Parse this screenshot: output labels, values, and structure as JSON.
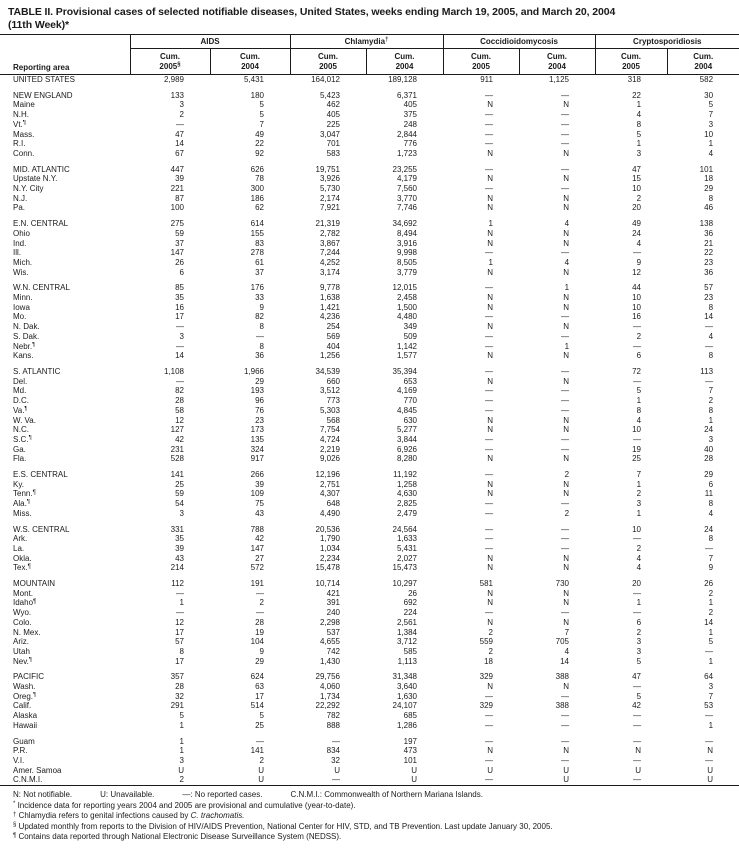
{
  "title": {
    "line1": "TABLE II. Provisional cases of selected notifiable diseases, United States, weeks ending March 19, 2005, and March 20, 2004",
    "line2": "(11th Week)*"
  },
  "header": {
    "reporting_area_label": "Reporting area",
    "groups": [
      {
        "label": "AIDS",
        "mark": "",
        "cols": [
          {
            "l1": "Cum.",
            "l2": "2005",
            "mark": "§"
          },
          {
            "l1": "Cum.",
            "l2": "2004",
            "mark": ""
          }
        ]
      },
      {
        "label": "Chlamydia",
        "mark": "†",
        "cols": [
          {
            "l1": "Cum.",
            "l2": "2005",
            "mark": ""
          },
          {
            "l1": "Cum.",
            "l2": "2004",
            "mark": ""
          }
        ]
      },
      {
        "label": "Coccidioidomycosis",
        "mark": "",
        "cols": [
          {
            "l1": "Cum.",
            "l2": "2005",
            "mark": ""
          },
          {
            "l1": "Cum.",
            "l2": "2004",
            "mark": ""
          }
        ]
      },
      {
        "label": "Cryptosporidiosis",
        "mark": "",
        "cols": [
          {
            "l1": "Cum.",
            "l2": "2005",
            "mark": ""
          },
          {
            "l1": "Cum.",
            "l2": "2004",
            "mark": ""
          }
        ]
      }
    ]
  },
  "sections": [
    {
      "rows": [
        {
          "area": "UNITED STATES",
          "mark": "",
          "values": [
            "2,989",
            "5,431",
            "164,012",
            "189,128",
            "911",
            "1,125",
            "318",
            "582"
          ]
        }
      ]
    },
    {
      "rows": [
        {
          "area": "NEW ENGLAND",
          "mark": "",
          "values": [
            "133",
            "180",
            "5,423",
            "6,371",
            "—",
            "—",
            "22",
            "30"
          ]
        },
        {
          "area": "Maine",
          "mark": "",
          "values": [
            "3",
            "5",
            "462",
            "405",
            "N",
            "N",
            "1",
            "5"
          ]
        },
        {
          "area": "N.H.",
          "mark": "",
          "values": [
            "2",
            "5",
            "405",
            "375",
            "—",
            "—",
            "4",
            "7"
          ]
        },
        {
          "area": "Vt.",
          "mark": "¶",
          "values": [
            "—",
            "7",
            "225",
            "248",
            "—",
            "—",
            "8",
            "3"
          ]
        },
        {
          "area": "Mass.",
          "mark": "",
          "values": [
            "47",
            "49",
            "3,047",
            "2,844",
            "—",
            "—",
            "5",
            "10"
          ]
        },
        {
          "area": "R.I.",
          "mark": "",
          "values": [
            "14",
            "22",
            "701",
            "776",
            "—",
            "—",
            "1",
            "1"
          ]
        },
        {
          "area": "Conn.",
          "mark": "",
          "values": [
            "67",
            "92",
            "583",
            "1,723",
            "N",
            "N",
            "3",
            "4"
          ]
        }
      ]
    },
    {
      "rows": [
        {
          "area": "MID. ATLANTIC",
          "mark": "",
          "values": [
            "447",
            "626",
            "19,751",
            "23,255",
            "—",
            "—",
            "47",
            "101"
          ]
        },
        {
          "area": "Upstate N.Y.",
          "mark": "",
          "values": [
            "39",
            "78",
            "3,926",
            "4,179",
            "N",
            "N",
            "15",
            "18"
          ]
        },
        {
          "area": "N.Y. City",
          "mark": "",
          "values": [
            "221",
            "300",
            "5,730",
            "7,560",
            "—",
            "—",
            "10",
            "29"
          ]
        },
        {
          "area": "N.J.",
          "mark": "",
          "values": [
            "87",
            "186",
            "2,174",
            "3,770",
            "N",
            "N",
            "2",
            "8"
          ]
        },
        {
          "area": "Pa.",
          "mark": "",
          "values": [
            "100",
            "62",
            "7,921",
            "7,746",
            "N",
            "N",
            "20",
            "46"
          ]
        }
      ]
    },
    {
      "rows": [
        {
          "area": "E.N. CENTRAL",
          "mark": "",
          "values": [
            "275",
            "614",
            "21,319",
            "34,692",
            "1",
            "4",
            "49",
            "138"
          ]
        },
        {
          "area": "Ohio",
          "mark": "",
          "values": [
            "59",
            "155",
            "2,782",
            "8,494",
            "N",
            "N",
            "24",
            "36"
          ]
        },
        {
          "area": "Ind.",
          "mark": "",
          "values": [
            "37",
            "83",
            "3,867",
            "3,916",
            "N",
            "N",
            "4",
            "21"
          ]
        },
        {
          "area": "Ill.",
          "mark": "",
          "values": [
            "147",
            "278",
            "7,244",
            "9,998",
            "—",
            "—",
            "—",
            "22"
          ]
        },
        {
          "area": "Mich.",
          "mark": "",
          "values": [
            "26",
            "61",
            "4,252",
            "8,505",
            "1",
            "4",
            "9",
            "23"
          ]
        },
        {
          "area": "Wis.",
          "mark": "",
          "values": [
            "6",
            "37",
            "3,174",
            "3,779",
            "N",
            "N",
            "12",
            "36"
          ]
        }
      ]
    },
    {
      "rows": [
        {
          "area": "W.N. CENTRAL",
          "mark": "",
          "values": [
            "85",
            "176",
            "9,778",
            "12,015",
            "—",
            "1",
            "44",
            "57"
          ]
        },
        {
          "area": "Minn.",
          "mark": "",
          "values": [
            "35",
            "33",
            "1,638",
            "2,458",
            "N",
            "N",
            "10",
            "23"
          ]
        },
        {
          "area": "Iowa",
          "mark": "",
          "values": [
            "16",
            "9",
            "1,421",
            "1,500",
            "N",
            "N",
            "10",
            "8"
          ]
        },
        {
          "area": "Mo.",
          "mark": "",
          "values": [
            "17",
            "82",
            "4,236",
            "4,480",
            "—",
            "—",
            "16",
            "14"
          ]
        },
        {
          "area": "N. Dak.",
          "mark": "",
          "values": [
            "—",
            "8",
            "254",
            "349",
            "N",
            "N",
            "—",
            "—"
          ]
        },
        {
          "area": "S. Dak.",
          "mark": "",
          "values": [
            "3",
            "—",
            "569",
            "509",
            "—",
            "—",
            "2",
            "4"
          ]
        },
        {
          "area": "Nebr.",
          "mark": "¶",
          "values": [
            "—",
            "8",
            "404",
            "1,142",
            "—",
            "1",
            "—",
            "—"
          ]
        },
        {
          "area": "Kans.",
          "mark": "",
          "values": [
            "14",
            "36",
            "1,256",
            "1,577",
            "N",
            "N",
            "6",
            "8"
          ]
        }
      ]
    },
    {
      "rows": [
        {
          "area": "S. ATLANTIC",
          "mark": "",
          "values": [
            "1,108",
            "1,966",
            "34,539",
            "35,394",
            "—",
            "—",
            "72",
            "113"
          ]
        },
        {
          "area": "Del.",
          "mark": "",
          "values": [
            "—",
            "29",
            "660",
            "653",
            "N",
            "N",
            "—",
            "—"
          ]
        },
        {
          "area": "Md.",
          "mark": "",
          "values": [
            "82",
            "193",
            "3,512",
            "4,169",
            "—",
            "—",
            "5",
            "7"
          ]
        },
        {
          "area": "D.C.",
          "mark": "",
          "values": [
            "28",
            "96",
            "773",
            "770",
            "—",
            "—",
            "1",
            "2"
          ]
        },
        {
          "area": "Va.",
          "mark": "¶",
          "values": [
            "58",
            "76",
            "5,303",
            "4,845",
            "—",
            "—",
            "8",
            "8"
          ]
        },
        {
          "area": "W. Va.",
          "mark": "",
          "values": [
            "12",
            "23",
            "568",
            "630",
            "N",
            "N",
            "4",
            "1"
          ]
        },
        {
          "area": "N.C.",
          "mark": "",
          "values": [
            "127",
            "173",
            "7,754",
            "5,277",
            "N",
            "N",
            "10",
            "24"
          ]
        },
        {
          "area": "S.C.",
          "mark": "¶",
          "values": [
            "42",
            "135",
            "4,724",
            "3,844",
            "—",
            "—",
            "—",
            "3"
          ]
        },
        {
          "area": "Ga.",
          "mark": "",
          "values": [
            "231",
            "324",
            "2,219",
            "6,926",
            "—",
            "—",
            "19",
            "40"
          ]
        },
        {
          "area": "Fla.",
          "mark": "",
          "values": [
            "528",
            "917",
            "9,026",
            "8,280",
            "N",
            "N",
            "25",
            "28"
          ]
        }
      ]
    },
    {
      "rows": [
        {
          "area": "E.S. CENTRAL",
          "mark": "",
          "values": [
            "141",
            "266",
            "12,196",
            "11,192",
            "—",
            "2",
            "7",
            "29"
          ]
        },
        {
          "area": "Ky.",
          "mark": "",
          "values": [
            "25",
            "39",
            "2,751",
            "1,258",
            "N",
            "N",
            "1",
            "6"
          ]
        },
        {
          "area": "Tenn.",
          "mark": "¶",
          "values": [
            "59",
            "109",
            "4,307",
            "4,630",
            "N",
            "N",
            "2",
            "11"
          ]
        },
        {
          "area": "Ala.",
          "mark": "¶",
          "values": [
            "54",
            "75",
            "648",
            "2,825",
            "—",
            "—",
            "3",
            "8"
          ]
        },
        {
          "area": "Miss.",
          "mark": "",
          "values": [
            "3",
            "43",
            "4,490",
            "2,479",
            "—",
            "2",
            "1",
            "4"
          ]
        }
      ]
    },
    {
      "rows": [
        {
          "area": "W.S. CENTRAL",
          "mark": "",
          "values": [
            "331",
            "788",
            "20,536",
            "24,564",
            "—",
            "—",
            "10",
            "24"
          ]
        },
        {
          "area": "Ark.",
          "mark": "",
          "values": [
            "35",
            "42",
            "1,790",
            "1,633",
            "—",
            "—",
            "—",
            "8"
          ]
        },
        {
          "area": "La.",
          "mark": "",
          "values": [
            "39",
            "147",
            "1,034",
            "5,431",
            "—",
            "—",
            "2",
            "—"
          ]
        },
        {
          "area": "Okla.",
          "mark": "",
          "values": [
            "43",
            "27",
            "2,234",
            "2,027",
            "N",
            "N",
            "4",
            "7"
          ]
        },
        {
          "area": "Tex.",
          "mark": "¶",
          "values": [
            "214",
            "572",
            "15,478",
            "15,473",
            "N",
            "N",
            "4",
            "9"
          ]
        }
      ]
    },
    {
      "rows": [
        {
          "area": "MOUNTAIN",
          "mark": "",
          "values": [
            "112",
            "191",
            "10,714",
            "10,297",
            "581",
            "730",
            "20",
            "26"
          ]
        },
        {
          "area": "Mont.",
          "mark": "",
          "values": [
            "—",
            "—",
            "421",
            "26",
            "N",
            "N",
            "—",
            "2"
          ]
        },
        {
          "area": "Idaho",
          "mark": "¶",
          "values": [
            "1",
            "2",
            "391",
            "692",
            "N",
            "N",
            "1",
            "1"
          ]
        },
        {
          "area": "Wyo.",
          "mark": "",
          "values": [
            "—",
            "—",
            "240",
            "224",
            "—",
            "—",
            "—",
            "2"
          ]
        },
        {
          "area": "Colo.",
          "mark": "",
          "values": [
            "12",
            "28",
            "2,298",
            "2,561",
            "N",
            "N",
            "6",
            "14"
          ]
        },
        {
          "area": "N. Mex.",
          "mark": "",
          "values": [
            "17",
            "19",
            "537",
            "1,384",
            "2",
            "7",
            "2",
            "1"
          ]
        },
        {
          "area": "Ariz.",
          "mark": "",
          "values": [
            "57",
            "104",
            "4,655",
            "3,712",
            "559",
            "705",
            "3",
            "5"
          ]
        },
        {
          "area": "Utah",
          "mark": "",
          "values": [
            "8",
            "9",
            "742",
            "585",
            "2",
            "4",
            "3",
            "—"
          ]
        },
        {
          "area": "Nev.",
          "mark": "¶",
          "values": [
            "17",
            "29",
            "1,430",
            "1,113",
            "18",
            "14",
            "5",
            "1"
          ]
        }
      ]
    },
    {
      "rows": [
        {
          "area": "PACIFIC",
          "mark": "",
          "values": [
            "357",
            "624",
            "29,756",
            "31,348",
            "329",
            "388",
            "47",
            "64"
          ]
        },
        {
          "area": "Wash.",
          "mark": "",
          "values": [
            "28",
            "63",
            "4,060",
            "3,640",
            "N",
            "N",
            "—",
            "3"
          ]
        },
        {
          "area": "Oreg.",
          "mark": "¶",
          "values": [
            "32",
            "17",
            "1,734",
            "1,630",
            "—",
            "—",
            "5",
            "7"
          ]
        },
        {
          "area": "Calif.",
          "mark": "",
          "values": [
            "291",
            "514",
            "22,292",
            "24,107",
            "329",
            "388",
            "42",
            "53"
          ]
        },
        {
          "area": "Alaska",
          "mark": "",
          "values": [
            "5",
            "5",
            "782",
            "685",
            "—",
            "—",
            "—",
            "—"
          ]
        },
        {
          "area": "Hawaii",
          "mark": "",
          "values": [
            "1",
            "25",
            "888",
            "1,286",
            "—",
            "—",
            "—",
            "1"
          ]
        }
      ]
    },
    {
      "rows": [
        {
          "area": "Guam",
          "mark": "",
          "values": [
            "1",
            "—",
            "—",
            "197",
            "—",
            "—",
            "—",
            "—"
          ]
        },
        {
          "area": "P.R.",
          "mark": "",
          "values": [
            "1",
            "141",
            "834",
            "473",
            "N",
            "N",
            "N",
            "N"
          ]
        },
        {
          "area": "V.I.",
          "mark": "",
          "values": [
            "3",
            "2",
            "32",
            "101",
            "—",
            "—",
            "—",
            "—"
          ]
        },
        {
          "area": "Amer. Samoa",
          "mark": "",
          "values": [
            "U",
            "U",
            "U",
            "U",
            "U",
            "U",
            "U",
            "U"
          ]
        },
        {
          "area": "C.N.M.I.",
          "mark": "",
          "values": [
            "2",
            "U",
            "—",
            "U",
            "—",
            "U",
            "—",
            "U"
          ]
        }
      ]
    }
  ],
  "footnotes": {
    "legend_items": [
      "N: Not notifiable.",
      "U: Unavailable.",
      "—: No reported cases.",
      "C.N.M.I.: Commonwealth of Northern Mariana Islands."
    ],
    "notes": [
      {
        "mark": "*",
        "text": "Incidence data for reporting years 2004 and 2005 are provisional and cumulative (year-to-date).",
        "italic": ""
      },
      {
        "mark": "†",
        "text": "Chlamydia refers to genital infections caused by ",
        "italic": "C. trachomatis."
      },
      {
        "mark": "§",
        "text": "Updated monthly from reports to the Division of HIV/AIDS Prevention, National Center for HIV, STD, and TB Prevention. Last update January 30, 2005.",
        "italic": ""
      },
      {
        "mark": "¶",
        "text": "Contains data reported through National Electronic Disease Surveillance System (NEDSS).",
        "italic": ""
      }
    ]
  }
}
